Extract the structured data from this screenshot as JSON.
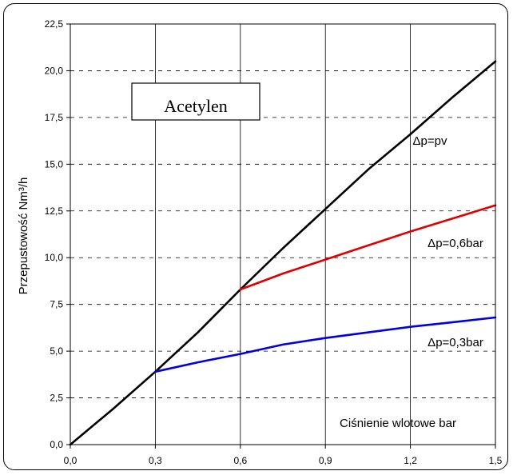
{
  "chart_data": {
    "type": "line",
    "title": "Acetylen",
    "xlabel": "Ciśnienie wlotowe bar",
    "ylabel": "Przepustowość Nm³/h",
    "xlim": [
      0,
      1.5
    ],
    "ylim": [
      0,
      22.5
    ],
    "x_ticks": [
      "0,0",
      "0,3",
      "0,6",
      "0,9",
      "1,2",
      "1,5"
    ],
    "y_ticks": [
      "0,0",
      "2,5",
      "5,0",
      "7,5",
      "10,0",
      "12,5",
      "15,0",
      "17,5",
      "20,0",
      "22,5"
    ],
    "grid": {
      "vertical": "solid",
      "horizontal": "dashed"
    },
    "series": [
      {
        "name": "Δp=pv",
        "color": "#000000",
        "points": [
          [
            0,
            0
          ],
          [
            0.15,
            1.9
          ],
          [
            0.3,
            3.9
          ],
          [
            0.45,
            6.0
          ],
          [
            0.6,
            8.3
          ],
          [
            0.75,
            10.5
          ],
          [
            0.9,
            12.6
          ],
          [
            1.05,
            14.7
          ],
          [
            1.2,
            16.6
          ],
          [
            1.35,
            18.6
          ],
          [
            1.5,
            20.5
          ]
        ]
      },
      {
        "name": "Δp=0,6bar",
        "color": "#e00000",
        "points": [
          [
            0.6,
            8.3
          ],
          [
            0.75,
            9.15
          ],
          [
            0.9,
            9.9
          ],
          [
            1.05,
            10.65
          ],
          [
            1.2,
            11.4
          ],
          [
            1.35,
            12.1
          ],
          [
            1.5,
            12.8
          ]
        ]
      },
      {
        "name": "Δp=0,3bar",
        "color": "#0000e0",
        "points": [
          [
            0.3,
            3.9
          ],
          [
            0.45,
            4.4
          ],
          [
            0.6,
            4.85
          ],
          [
            0.75,
            5.35
          ],
          [
            0.9,
            5.7
          ],
          [
            1.05,
            6.0
          ],
          [
            1.2,
            6.3
          ],
          [
            1.35,
            6.55
          ],
          [
            1.5,
            6.8
          ]
        ]
      }
    ],
    "annotations": [
      "Δp=pv",
      "Δp=0,6bar",
      "Δp=0,3bar"
    ]
  }
}
